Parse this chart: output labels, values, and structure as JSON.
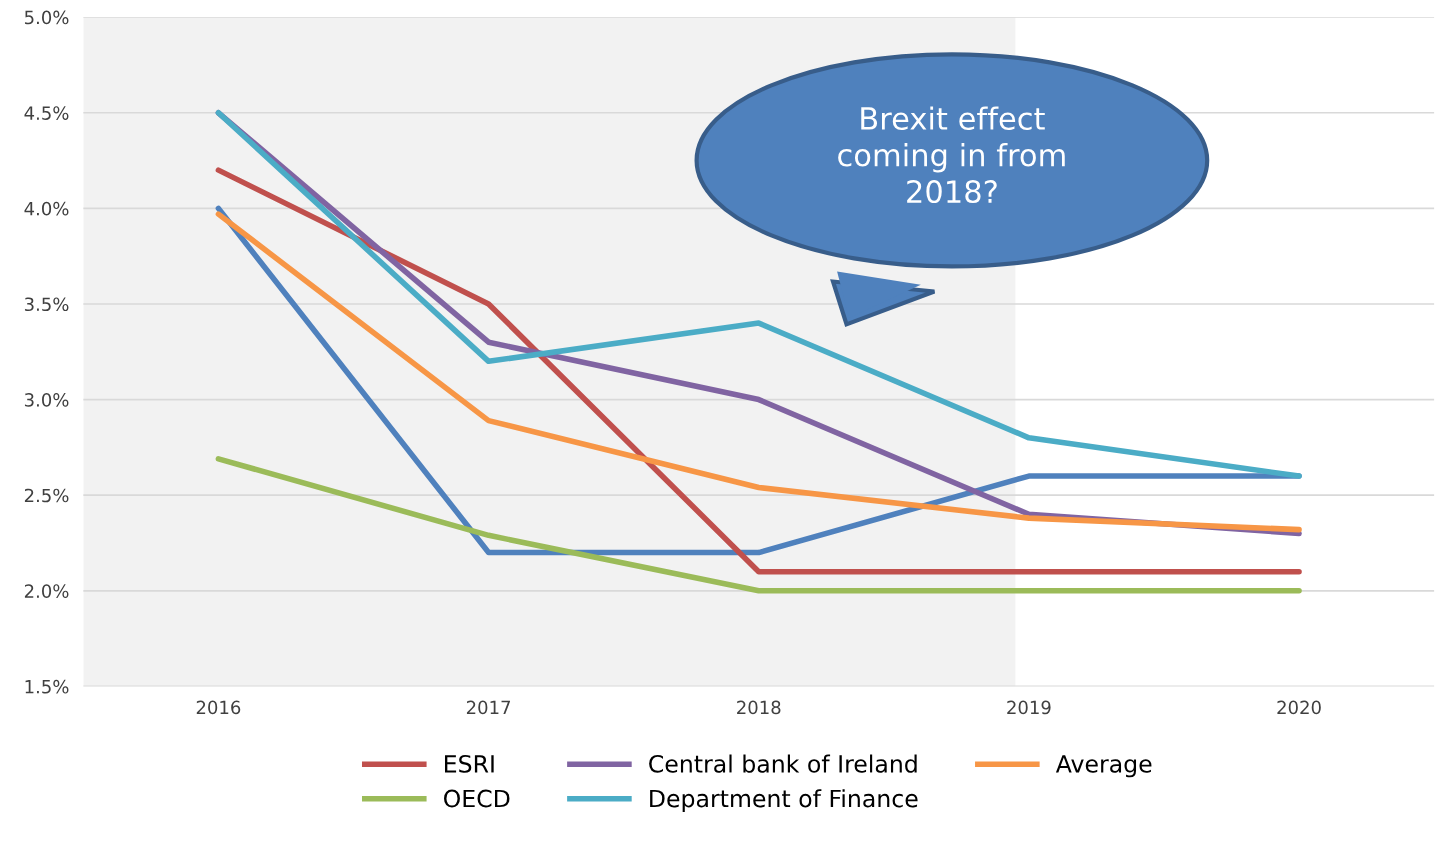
{
  "chart_data": {
    "type": "line",
    "x": [
      2016,
      2017,
      2018,
      2019,
      2020
    ],
    "xlim": [
      2015.5,
      2020.5
    ],
    "xticks": [
      2016,
      2017,
      2018,
      2019,
      2020
    ],
    "ylim": [
      1.5,
      5.0
    ],
    "yticks": [
      {
        "value": 1.5,
        "label": "1.5%"
      },
      {
        "value": 2.0,
        "label": "2.0%"
      },
      {
        "value": 2.5,
        "label": "2.5%"
      },
      {
        "value": 3.0,
        "label": "3.0%"
      },
      {
        "value": 3.5,
        "label": "3.5%"
      },
      {
        "value": 4.0,
        "label": "4.0%"
      },
      {
        "value": 4.5,
        "label": "4.5%"
      },
      {
        "value": 5.0,
        "label": "5.0%"
      }
    ],
    "grid": "y",
    "legend": "bottom",
    "marker": "none",
    "line_style": "solid",
    "bands": [
      {
        "axis": "x",
        "from": 2015.5,
        "to": 2018.95,
        "color": "#f2f2f2"
      }
    ],
    "annotations": [
      "Brexit effect\ncoming in from\n2018?"
    ],
    "series": [
      {
        "color": "#4f81bd",
        "values": [
          4.0,
          2.2,
          2.2,
          2.6,
          2.6
        ]
      },
      {
        "name": "ESRI",
        "color": "#c0504d",
        "values": [
          4.2,
          3.5,
          2.1,
          2.1,
          2.1
        ]
      },
      {
        "name": "OECD",
        "color": "#9bbb59",
        "values": [
          2.69,
          2.29,
          2.0,
          2.0,
          2.0
        ]
      },
      {
        "name": "Central bank of Ireland",
        "color": "#8064a2",
        "values": [
          4.5,
          3.3,
          3.0,
          2.4,
          2.3
        ]
      },
      {
        "name": "Department of Finance",
        "color": "#4bacc6",
        "values": [
          4.5,
          3.2,
          3.4,
          2.8,
          2.6
        ]
      },
      {
        "name": "Average",
        "color": "#f79646",
        "values": [
          3.97,
          2.89,
          2.54,
          2.38,
          2.32
        ]
      }
    ]
  }
}
